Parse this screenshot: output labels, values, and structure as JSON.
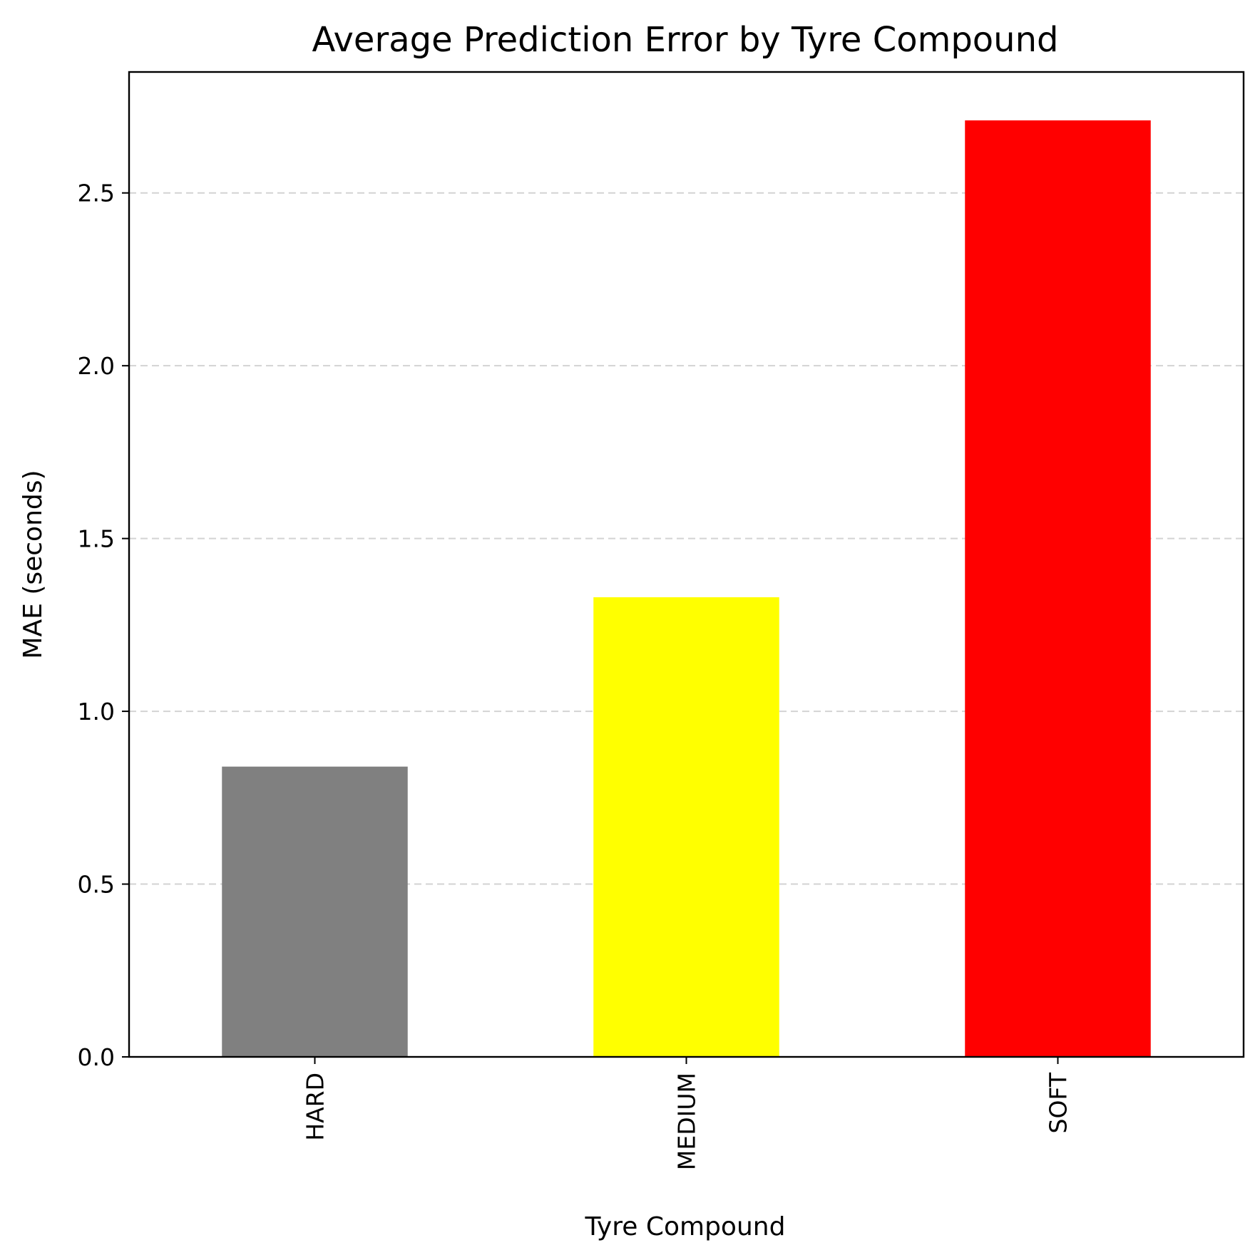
{
  "chart_data": {
    "type": "bar",
    "title": "Average Prediction Error by Tyre Compound",
    "xlabel": "Tyre Compound",
    "ylabel": "MAE (seconds)",
    "categories": [
      "HARD",
      "MEDIUM",
      "SOFT"
    ],
    "values": [
      0.84,
      1.33,
      2.71
    ],
    "colors": [
      "#808080",
      "#ffff00",
      "#ff0000"
    ],
    "ylim": [
      0,
      2.85
    ],
    "yticks": [
      0.0,
      0.5,
      1.0,
      1.5,
      2.0,
      2.5
    ],
    "ytick_labels": [
      "0.0",
      "0.5",
      "1.0",
      "1.5",
      "2.0",
      "2.5"
    ],
    "grid": "y-dashed",
    "legend": "none"
  }
}
